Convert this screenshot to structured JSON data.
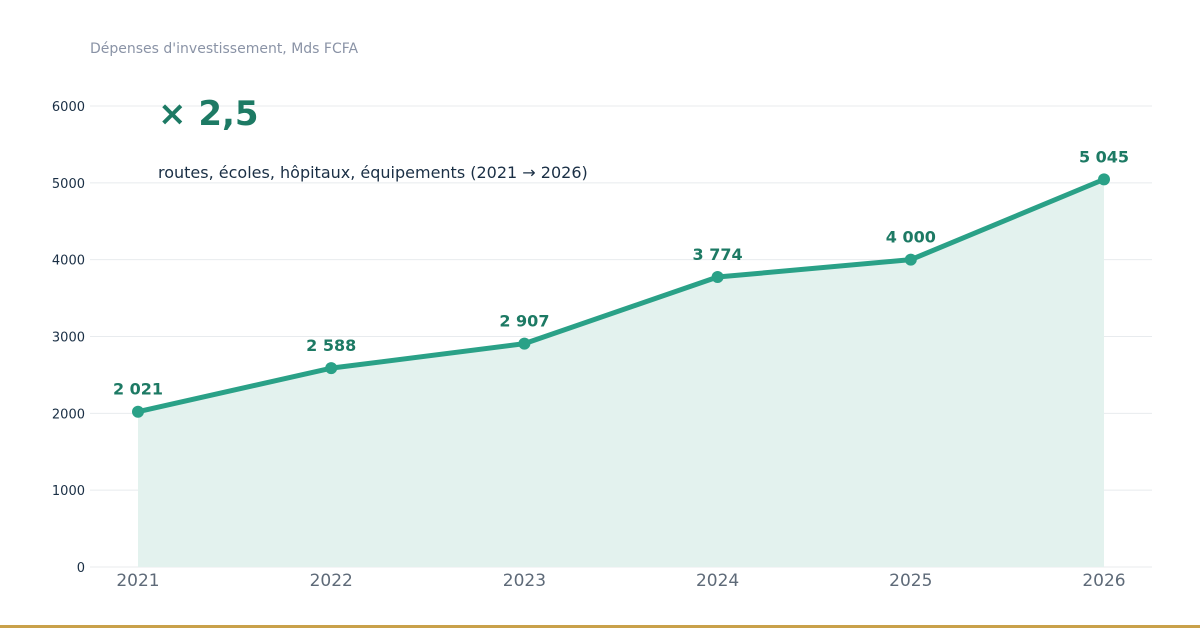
{
  "header": {
    "subtitle": "Dépenses d'investissement, Mds FCFA",
    "factor": "× 2,5",
    "caption": "routes, écoles, hôpitaux, équipements (2021 → 2026)"
  },
  "colors": {
    "line": "#2aa187",
    "area": "#e3f2ee",
    "label": "#1d7a64",
    "rule": "#c9a14a"
  },
  "chart_data": {
    "type": "area",
    "categories": [
      "2021",
      "2022",
      "2023",
      "2024",
      "2025",
      "2026"
    ],
    "values": [
      2021,
      2588,
      2907,
      3774,
      4000,
      5045
    ],
    "value_labels": [
      "2 021",
      "2 588",
      "2 907",
      "3 774",
      "4 000",
      "5 045"
    ],
    "yticks": [
      0,
      1000,
      2000,
      3000,
      4000,
      5000,
      6000
    ],
    "ylim": [
      0,
      6000
    ],
    "title": "",
    "subtitle": "Dépenses d'investissement, Mds FCFA",
    "xlabel": "",
    "ylabel": "",
    "grid": true
  }
}
